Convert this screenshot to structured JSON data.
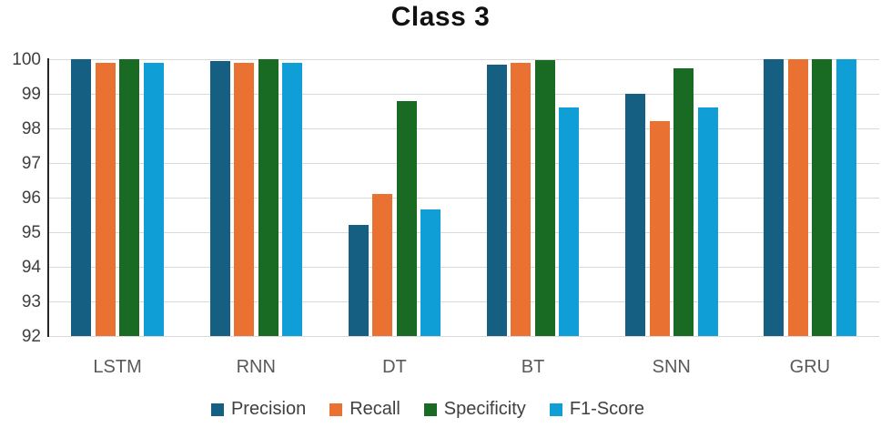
{
  "title": "Class 3",
  "chart_data": {
    "type": "bar",
    "title": "Class 3",
    "categories": [
      "LSTM",
      "RNN",
      "DT",
      "BT",
      "SNN",
      "GRU"
    ],
    "series": [
      {
        "name": "Precision",
        "color": "#156082",
        "values": [
          100,
          99.95,
          95.2,
          99.85,
          99.0,
          100
        ]
      },
      {
        "name": "Recall",
        "color": "#E97132",
        "values": [
          99.9,
          99.9,
          96.1,
          99.9,
          98.2,
          100
        ]
      },
      {
        "name": "Specificity",
        "color": "#196B24",
        "values": [
          100,
          100,
          98.8,
          99.97,
          99.75,
          100
        ]
      },
      {
        "name": "F1-Score",
        "color": "#0F9ED5",
        "values": [
          99.9,
          99.9,
          95.65,
          98.6,
          98.6,
          100
        ]
      }
    ],
    "ylim": [
      92,
      100
    ],
    "yticks": [
      92,
      93,
      94,
      95,
      96,
      97,
      98,
      99,
      100
    ],
    "grid": true,
    "legend_position": "bottom",
    "colors": {
      "gridline": "#d9d9d9",
      "axis_line": "#262626",
      "y_tick_label": "#404040",
      "x_tick_label": "#595959",
      "legend_label": "#404040",
      "title": "#111111",
      "background": "#ffffff"
    }
  }
}
